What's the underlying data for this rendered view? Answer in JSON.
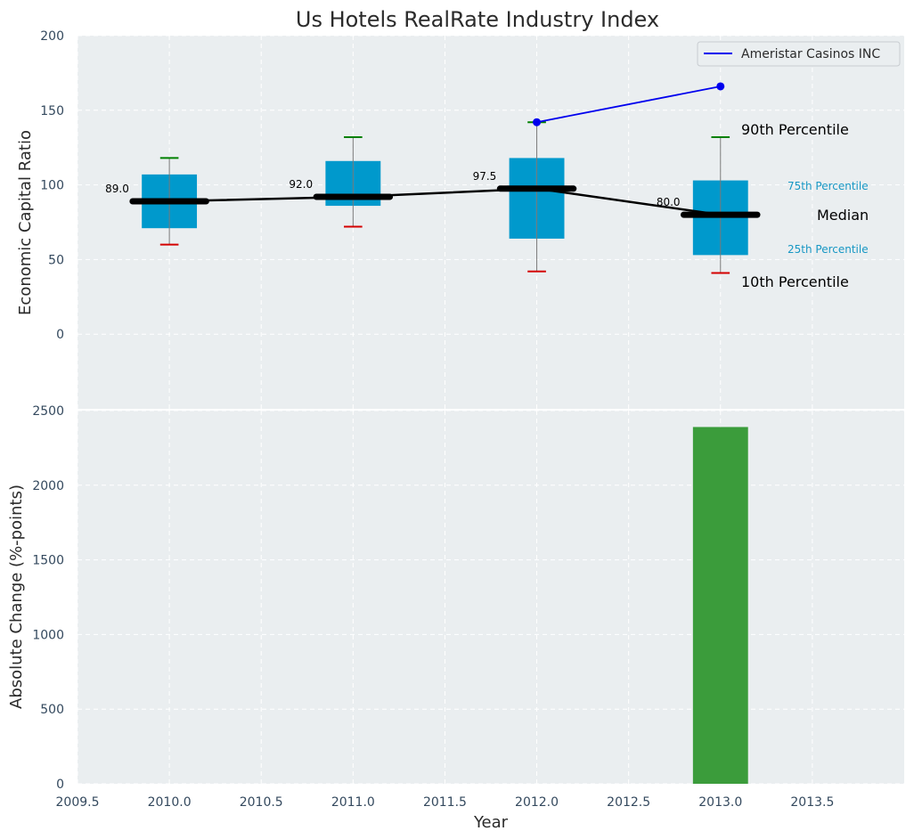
{
  "title": "Us Hotels RealRate Industry Index",
  "colors": {
    "plot_bg": "#eaeef0",
    "grid": "#ffffff",
    "box": "#0099cc",
    "median": "#000000",
    "p90_cap": "#008000",
    "p10_cap": "#d40000",
    "company": "#0000ee",
    "bar": "#3b9c3b"
  },
  "chart_data": [
    {
      "type": "box",
      "ylabel": "Economic Capital Ratio",
      "xlim": [
        2009.5,
        2014.0
      ],
      "ylim": [
        -50,
        200
      ],
      "ytick_values": [
        0,
        50,
        100,
        150,
        200
      ],
      "yticks": [
        "0",
        "50",
        "100",
        "150",
        "200"
      ],
      "grid": true,
      "boxes": [
        {
          "x": 2010,
          "p10": 60,
          "p25": 71,
          "median": 89.0,
          "p75": 107,
          "p90": 118,
          "label": "89.0"
        },
        {
          "x": 2011,
          "p10": 72,
          "p25": 86,
          "median": 92.0,
          "p75": 116,
          "p90": 132,
          "label": "92.0"
        },
        {
          "x": 2012,
          "p10": 42,
          "p25": 64,
          "median": 97.5,
          "p75": 118,
          "p90": 142,
          "label": "97.5"
        },
        {
          "x": 2013,
          "p10": 41,
          "p25": 53,
          "median": 80.0,
          "p75": 103,
          "p90": 132,
          "label": "80.0"
        }
      ],
      "series": [
        {
          "name": "Ameristar Casinos INC",
          "x": [
            2012,
            2013
          ],
          "y": [
            142,
            166
          ]
        }
      ],
      "legend": "top-right",
      "guides": {
        "p90": "90th Percentile",
        "p75": "75th Percentile",
        "median": "Median",
        "p25": "25th Percentile",
        "p10": "10th Percentile"
      }
    },
    {
      "type": "bar",
      "xlabel": "Year",
      "ylabel": "Absolute Change (%-points)",
      "xlim": [
        2009.5,
        2014.0
      ],
      "ylim": [
        0,
        2500
      ],
      "ytick_values": [
        0,
        500,
        1000,
        1500,
        2000,
        2500
      ],
      "yticks": [
        "0",
        "500",
        "1000",
        "1500",
        "2000",
        "2500"
      ],
      "xtick_values": [
        2009.5,
        2010.0,
        2010.5,
        2011.0,
        2011.5,
        2012.0,
        2012.5,
        2013.0,
        2013.5
      ],
      "xticks": [
        "2009.5",
        "2010.0",
        "2010.5",
        "2011.0",
        "2011.5",
        "2012.0",
        "2012.5",
        "2013.0",
        "2013.5"
      ],
      "grid": true,
      "x": [
        2013
      ],
      "values": [
        2390
      ]
    }
  ]
}
